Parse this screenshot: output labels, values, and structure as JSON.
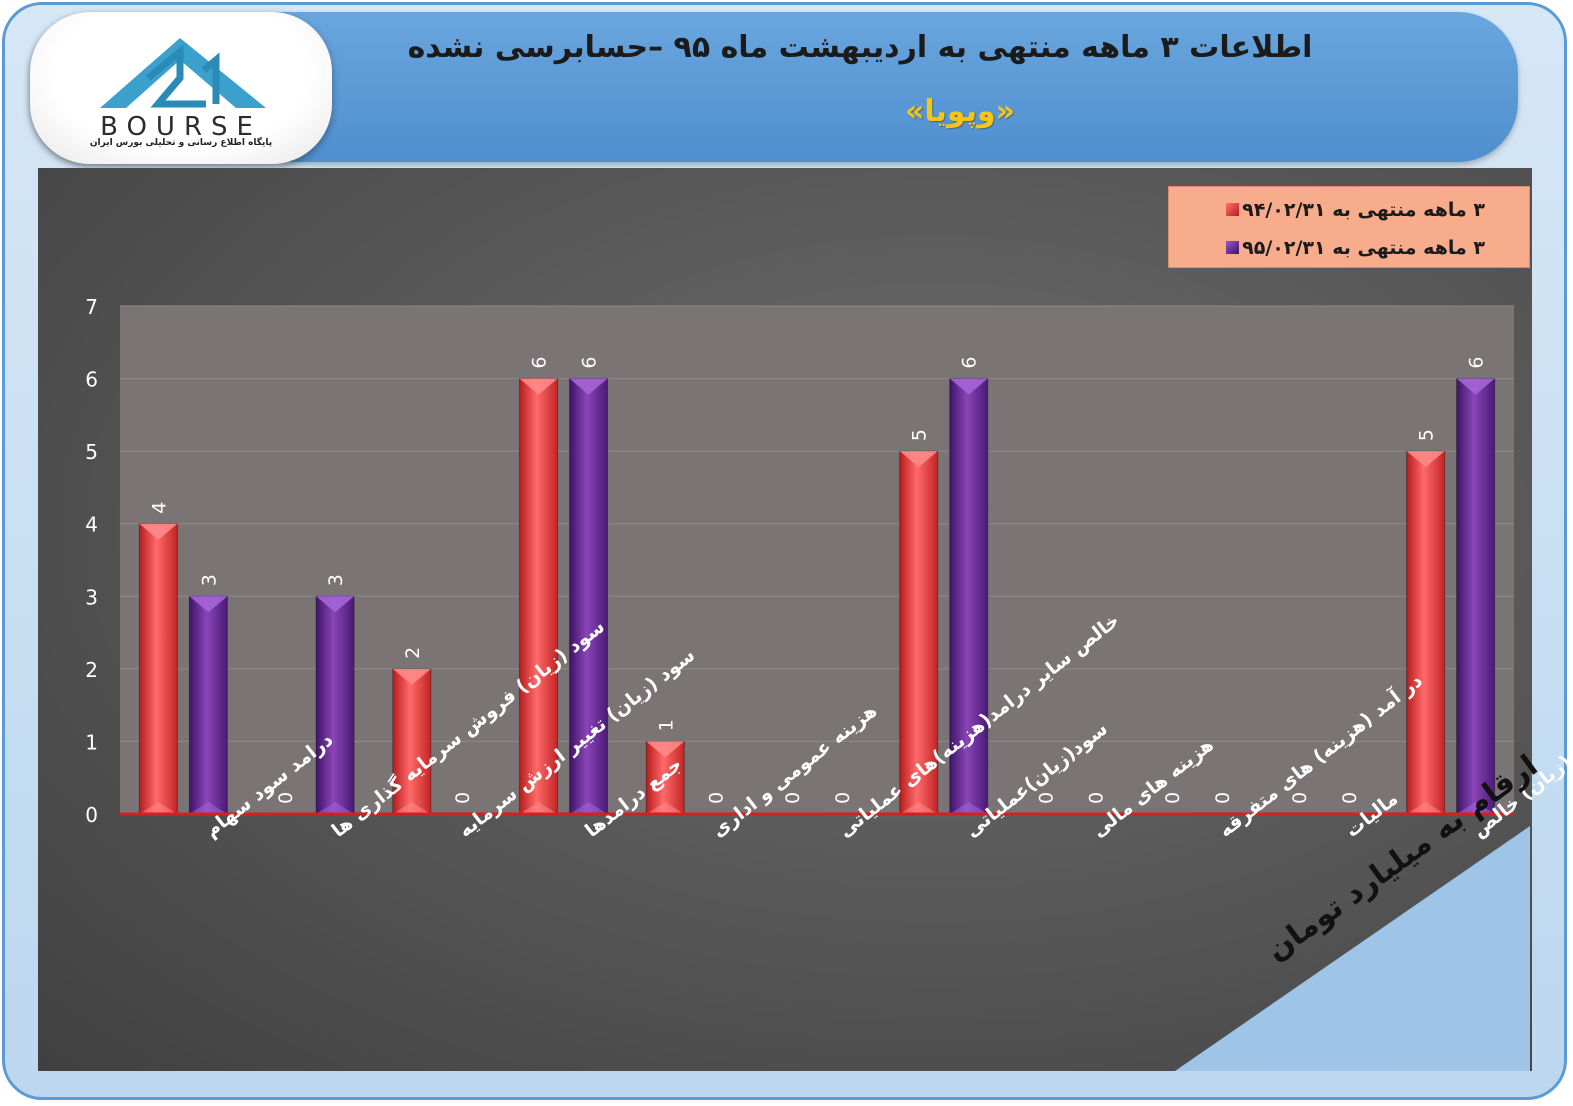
{
  "header": {
    "title": "اطلاعات ۳ ماهه منتهی به اردیبهشت ماه ۹۵ –حسابرسی نشده",
    "subtitle": "«وپویا»",
    "logo_text": "BOURSE",
    "logo_tagline": "پایگاه اطلاع رسانی و تحلیلی بورس ایران"
  },
  "unit_tag": "ارقام به میلیارد تومان",
  "colors": {
    "series1": "#f04848",
    "series2": "#6a2c8f",
    "plot_bg": "#7b7474",
    "baseline": "#d62020",
    "header_blue": "#5b9bd5",
    "legend_bg": "#f7ac8c",
    "subtitle_yellow": "#f5c518"
  },
  "chart_data": {
    "type": "bar",
    "categories": [
      "درامد سود سهام",
      "سود (زیان) فروش سرمایه گذاری ها",
      "سود (زیان) تغییر ارزش سرمایه",
      "جمع درامدها",
      "هزینه عمومی و اداری",
      "خالص سایر درامد(هزینه)های عملیاتی",
      "سود(زیان)عملیاتی",
      "هزینه های مالی",
      "در آمد (هزینه) های متفرقه",
      "مالیات",
      "سود(زیان) خالص"
    ],
    "series": [
      {
        "name": "۳ ماهه منتهی به ۹۴/۰۲/۳۱",
        "values": [
          4,
          0,
          2,
          6,
          1,
          0,
          5,
          0,
          0,
          0,
          5
        ]
      },
      {
        "name": "۳ ماهه منتهی به ۹۵/۰۲/۳۱",
        "values": [
          3,
          3,
          0,
          6,
          0,
          0,
          6,
          0,
          0,
          0,
          6
        ]
      }
    ],
    "ylim": [
      0,
      7
    ],
    "yticks": [
      0,
      1,
      2,
      3,
      4,
      5,
      6,
      7
    ],
    "grid": true,
    "legend_position": "top-right",
    "data_labels": true
  }
}
